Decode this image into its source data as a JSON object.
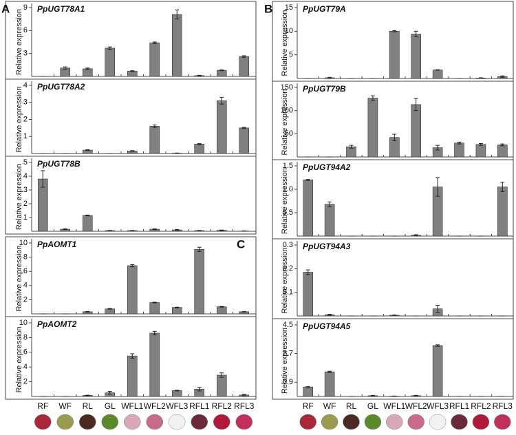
{
  "chart_data": [
    {
      "type": "bar",
      "panel_label": "A",
      "title": "PpUGT78A1",
      "y_label": "Relative expression",
      "categories": [
        "RF",
        "WF",
        "RL",
        "GL",
        "WFL1",
        "WFL2",
        "WFL3",
        "RFL1",
        "RFL2",
        "RFL3"
      ],
      "values": [
        0,
        1.1,
        1.0,
        3.7,
        0.7,
        4.4,
        8.1,
        0.1,
        0.8,
        2.6
      ],
      "errors": [
        0,
        0.15,
        0.1,
        0.15,
        0.05,
        0.1,
        0.6,
        0.05,
        0.05,
        0.1
      ],
      "color": "#808080",
      "ylim": [
        0,
        9
      ],
      "yticks": [
        3,
        6,
        9
      ]
    },
    {
      "type": "bar",
      "title": "PpUGT78A2",
      "y_label": "Relative expression",
      "categories": [
        "RF",
        "WF",
        "RL",
        "GL",
        "WFL1",
        "WFL2",
        "WFL3",
        "RFL1",
        "RFL2",
        "RFL3"
      ],
      "values": [
        0,
        0,
        0.2,
        0,
        0.15,
        1.6,
        0.02,
        0.55,
        3.1,
        1.5
      ],
      "errors": [
        0,
        0,
        0.02,
        0,
        0.02,
        0.07,
        0.01,
        0.03,
        0.2,
        0.04
      ],
      "color": "#808080",
      "ylim": [
        0,
        4
      ],
      "yticks": [
        1,
        2,
        3,
        4
      ]
    },
    {
      "type": "bar",
      "title": "PpUGT78B",
      "y_label": "Relative expression",
      "categories": [
        "RF",
        "WF",
        "RL",
        "GL",
        "WFL1",
        "WFL2",
        "WFL3",
        "RFL1",
        "RFL2",
        "RFL3"
      ],
      "values": [
        3.8,
        0.15,
        1.15,
        0.05,
        0.05,
        0.15,
        0.1,
        0.05,
        0.07,
        0.02
      ],
      "errors": [
        0.6,
        0.03,
        0.03,
        0.01,
        0.01,
        0.03,
        0.03,
        0.01,
        0.02,
        0.01
      ],
      "color": "#808080",
      "ylim": [
        0,
        5
      ],
      "yticks": [
        1,
        2,
        3,
        4,
        5
      ]
    },
    {
      "type": "bar",
      "panel_label": "C",
      "title": "PpAOMT1",
      "y_label": "Relative expression",
      "categories": [
        "RF",
        "WF",
        "RL",
        "GL",
        "WFL1",
        "WFL2",
        "WFL3",
        "RFL1",
        "RFL2",
        "RFL3"
      ],
      "values": [
        0,
        0,
        0.3,
        0.7,
        6.8,
        1.6,
        0.9,
        9.1,
        1.0,
        0.3
      ],
      "errors": [
        0,
        0,
        0.05,
        0.05,
        0.15,
        0.05,
        0.05,
        0.3,
        0.05,
        0.03
      ],
      "color": "#808080",
      "ylim": [
        0,
        10
      ],
      "yticks": [
        2,
        4,
        6,
        8,
        10
      ]
    },
    {
      "type": "bar",
      "title": "PpAOMT2",
      "y_label": "Relative expression",
      "categories": [
        "RF",
        "WF",
        "RL",
        "GL",
        "WFL1",
        "WFL2",
        "WFL3",
        "RFL1",
        "RFL2",
        "RFL3"
      ],
      "values": [
        0,
        0,
        0.15,
        0.5,
        5.5,
        8.6,
        0.8,
        1.0,
        2.9,
        0.2
      ],
      "errors": [
        0,
        0,
        0.03,
        0.2,
        0.3,
        0.25,
        0.05,
        0.25,
        0.3,
        0.1
      ],
      "color": "#808080",
      "ylim": [
        0,
        10
      ],
      "yticks": [
        2,
        4,
        6,
        8,
        10
      ]
    },
    {
      "type": "bar",
      "panel_label": "B",
      "title": "PpUGT79A",
      "y_label": "Relative expression",
      "categories": [
        "RF",
        "WF",
        "RL",
        "GL",
        "WFL1",
        "WFL2",
        "WFL3",
        "RFL1",
        "RFL2",
        "RFL3"
      ],
      "values": [
        0,
        0.15,
        0,
        0,
        10,
        9.4,
        1.8,
        0,
        0.1,
        0.4
      ],
      "errors": [
        0,
        0.1,
        0,
        0,
        0.15,
        0.6,
        0.05,
        0,
        0.05,
        0.15
      ],
      "color": "#808080",
      "ylim": [
        0,
        15
      ],
      "yticks": [
        5,
        10,
        15
      ]
    },
    {
      "type": "bar",
      "title": "PpUGT79B",
      "y_label": "Relative expression",
      "categories": [
        "RF",
        "WF",
        "RL",
        "GL",
        "WFL1",
        "WFL2",
        "WFL3",
        "RFL1",
        "RFL2",
        "RFL3"
      ],
      "values": [
        0,
        0,
        22,
        127,
        42,
        113,
        20,
        30,
        27,
        26
      ],
      "errors": [
        0,
        0,
        3,
        5,
        7,
        13,
        5,
        2,
        2,
        2
      ],
      "color": "#808080",
      "ylim": [
        0,
        150
      ],
      "yticks": [
        50,
        100,
        150
      ]
    },
    {
      "type": "bar",
      "title": "PpUGT94A2",
      "y_label": "Relative expression",
      "categories": [
        "RF",
        "WF",
        "RL",
        "GL",
        "WFL1",
        "WFL2",
        "WFL3",
        "RFL1",
        "RFL2",
        "RFL3"
      ],
      "values": [
        1.2,
        0.68,
        0,
        0,
        0,
        0.02,
        1.05,
        0,
        0,
        1.05
      ],
      "errors": [
        0.01,
        0.05,
        0,
        0,
        0,
        0.01,
        0.2,
        0,
        0,
        0.1
      ],
      "color": "#808080",
      "ylim": [
        0,
        1.5
      ],
      "yticks": [
        0.5,
        {
          "value": 1,
          "label": "1.0"
        },
        1.5
      ]
    },
    {
      "type": "bar",
      "title": "PpUGT94A3",
      "y_label": "Relative expression",
      "categories": [
        "RF",
        "WF",
        "RL",
        "GL",
        "WFL1",
        "WFL2",
        "WFL3",
        "RFL1",
        "RFL2",
        "RFL3"
      ],
      "values": [
        0.185,
        0.005,
        0,
        0,
        0.003,
        0,
        0.03,
        0,
        0,
        0
      ],
      "errors": [
        0.01,
        0.002,
        0,
        0,
        0.001,
        0,
        0.015,
        0,
        0,
        0
      ],
      "color": "#808080",
      "ylim": [
        0,
        0.3
      ],
      "yticks": [
        0.1,
        0.2,
        0.3
      ]
    },
    {
      "type": "bar",
      "title": "PpUGT94A5",
      "y_label": "Relative expression",
      "categories": [
        "RF",
        "WF",
        "RL",
        "GL",
        "WFL1",
        "WFL2",
        "WFL3",
        "RFL1",
        "RFL2",
        "RFL3"
      ],
      "values": [
        0.6,
        1.55,
        0,
        0.05,
        0.02,
        0.05,
        3.2,
        0,
        0,
        0
      ],
      "errors": [
        0.02,
        0.04,
        0,
        0.02,
        0.01,
        0.02,
        0.05,
        0,
        0,
        0
      ],
      "color": "#808080",
      "ylim": [
        0,
        4.5
      ],
      "yticks": [
        0.9,
        2.7,
        4.5
      ]
    }
  ]
}
